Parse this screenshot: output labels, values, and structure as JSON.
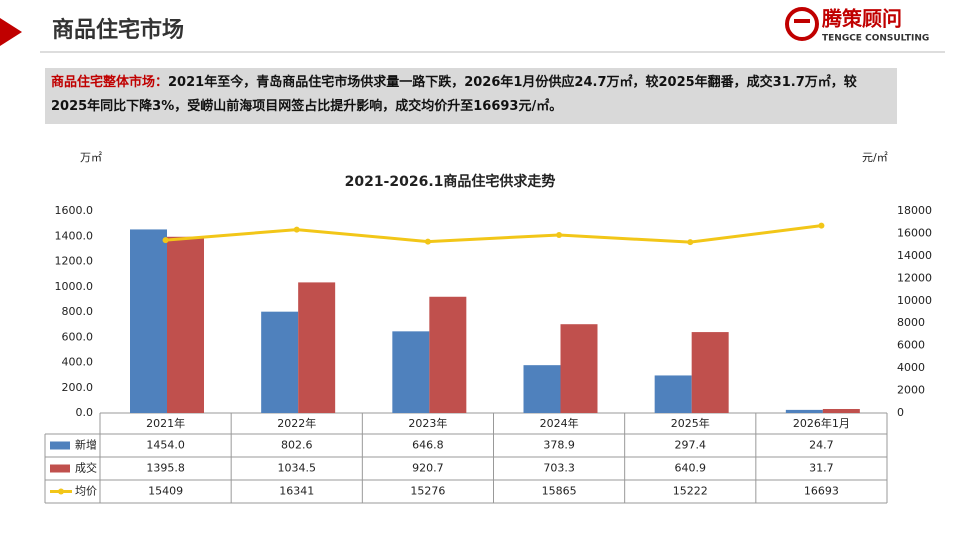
{
  "header": {
    "title": "商品住宅市场",
    "logo_name": "腾策顾问",
    "logo_sub": "TENGCE CONSULTING"
  },
  "summary": {
    "label": "商品住宅整体市场：",
    "text": "2021年至今，青岛商品住宅市场供求量一路下跌，2026年1月份供应24.7万㎡，较2025年翻番，成交31.7万㎡，较2025年同比下降3%，受崂山前海项目网签占比提升影响，成交均价升至16693元/㎡。"
  },
  "chart_data": {
    "type": "bar",
    "title": "2021-2026.1商品住宅供求走势",
    "y_unit": "万㎡",
    "y2_unit": "元/㎡",
    "categories": [
      "2021年",
      "2022年",
      "2023年",
      "2024年",
      "2025年",
      "2026年1月"
    ],
    "series": [
      {
        "name": "新增",
        "color": "#4f81bd",
        "type": "bar",
        "values": [
          1454.0,
          802.6,
          646.8,
          378.9,
          297.4,
          24.7
        ],
        "value_labels": [
          "1454.0",
          "802.6",
          "646.8",
          "378.9",
          "297.4",
          "24.7"
        ]
      },
      {
        "name": "成交",
        "color": "#c0504d",
        "type": "bar",
        "values": [
          1395.8,
          1034.5,
          920.7,
          703.3,
          640.9,
          31.7
        ],
        "value_labels": [
          "1395.8",
          "1034.5",
          "920.7",
          "703.3",
          "640.9",
          "31.7"
        ]
      },
      {
        "name": "均价",
        "color": "#f2c618",
        "type": "line",
        "axis": "y2",
        "values": [
          15409,
          16341,
          15276,
          15865,
          15222,
          16693
        ]
      }
    ],
    "ylim": [
      0,
      1600
    ],
    "yticks": [
      {
        "value": 0,
        "label": "0.0"
      },
      {
        "value": 200,
        "label": "200.0"
      },
      {
        "value": 400,
        "label": "400.0"
      },
      {
        "value": 600,
        "label": "600.0"
      },
      {
        "value": 800,
        "label": "800.0"
      },
      {
        "value": 1000,
        "label": "1000.0"
      },
      {
        "value": 1200,
        "label": "1200.0"
      },
      {
        "value": 1400,
        "label": "1400.0"
      },
      {
        "value": 1600,
        "label": "1600.0"
      }
    ],
    "y2lim": [
      0,
      18000
    ],
    "y2ticks": [
      0,
      2000,
      4000,
      6000,
      8000,
      10000,
      12000,
      14000,
      16000,
      18000
    ]
  }
}
